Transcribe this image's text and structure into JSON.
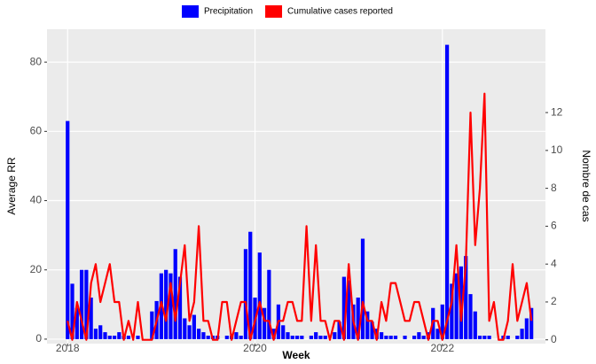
{
  "chart_data": {
    "type": "bar_line",
    "x_label": "Week",
    "y_label": "Average RR",
    "y2_label": "Nombre de cas",
    "x": [
      2018,
      2018.05,
      2018.1,
      2018.15,
      2018.2,
      2018.25,
      2018.3,
      2018.35,
      2018.4,
      2018.45,
      2018.5,
      2018.55,
      2018.6,
      2018.65,
      2018.7,
      2018.75,
      2018.8,
      2018.85,
      2018.9,
      2018.95,
      2019,
      2019.05,
      2019.1,
      2019.15,
      2019.2,
      2019.25,
      2019.3,
      2019.35,
      2019.4,
      2019.45,
      2019.5,
      2019.55,
      2019.6,
      2019.65,
      2019.7,
      2019.75,
      2019.8,
      2019.85,
      2019.9,
      2019.95,
      2020,
      2020.05,
      2020.1,
      2020.15,
      2020.2,
      2020.25,
      2020.3,
      2020.35,
      2020.4,
      2020.45,
      2020.5,
      2020.55,
      2020.6,
      2020.65,
      2020.7,
      2020.75,
      2020.8,
      2020.85,
      2020.9,
      2020.95,
      2021,
      2021.05,
      2021.1,
      2021.15,
      2021.2,
      2021.25,
      2021.3,
      2021.35,
      2021.4,
      2021.45,
      2021.5,
      2021.55,
      2021.6,
      2021.65,
      2021.7,
      2021.75,
      2021.8,
      2021.85,
      2021.9,
      2021.95,
      2022,
      2022.05,
      2022.1,
      2022.15,
      2022.2,
      2022.25,
      2022.3,
      2022.35,
      2022.4,
      2022.45,
      2022.5,
      2022.55,
      2022.6,
      2022.65,
      2022.7,
      2022.75,
      2022.8,
      2022.85,
      2022.9,
      2022.95
    ],
    "series": [
      {
        "name": "Precipitation",
        "color": "#0000ff",
        "axis": "y",
        "values": [
          63,
          16,
          9,
          20,
          20,
          12,
          3,
          4,
          2,
          1,
          1,
          2,
          1,
          1,
          0,
          1,
          0,
          0,
          8,
          11,
          19,
          20,
          19,
          26,
          18,
          6,
          4,
          7,
          3,
          2,
          1,
          1,
          1,
          0,
          1,
          1,
          2,
          1,
          26,
          31,
          12,
          25,
          9,
          20,
          3,
          10,
          4,
          2,
          1,
          1,
          1,
          0,
          1,
          2,
          1,
          1,
          0,
          2,
          5,
          18,
          17,
          10,
          12,
          29,
          8,
          5,
          3,
          2,
          1,
          1,
          1,
          0,
          1,
          0,
          1,
          2,
          1,
          2,
          9,
          3,
          10,
          85,
          16,
          19,
          21,
          24,
          13,
          8,
          1,
          1,
          1,
          0,
          0,
          1,
          1,
          0,
          1,
          3,
          6,
          9
        ]
      },
      {
        "name": "Cumulative cases reported",
        "color": "#ff0000",
        "axis": "y2",
        "values": [
          1,
          0,
          2,
          1,
          0,
          3,
          4,
          2,
          3,
          4,
          2,
          2,
          0,
          1,
          0,
          2,
          0,
          0,
          0,
          1,
          2,
          1,
          3,
          1,
          3,
          5,
          1,
          2,
          6,
          1,
          1,
          0,
          0,
          2,
          2,
          0,
          1,
          2,
          2,
          0,
          1,
          2,
          1,
          1,
          0,
          1,
          1,
          2,
          2,
          1,
          1,
          6,
          1,
          5,
          1,
          1,
          0,
          1,
          1,
          0,
          4,
          1,
          0,
          2,
          1,
          1,
          0,
          2,
          1,
          3,
          3,
          2,
          1,
          1,
          2,
          2,
          1,
          0,
          1,
          1,
          0,
          1,
          2,
          5,
          1,
          4,
          12,
          5,
          8,
          13,
          1,
          2,
          0,
          0,
          1,
          4,
          1,
          2,
          3,
          1
        ]
      }
    ],
    "xlim": [
      2017.78,
      2023.1
    ],
    "xticks": [
      2018,
      2020,
      2022
    ],
    "ylim": [
      -1.3,
      89.5
    ],
    "yticks": [
      0,
      20,
      40,
      60,
      80
    ],
    "y2lim": [
      -0.2,
      16.4
    ],
    "y2ticks": [
      0,
      2,
      4,
      6,
      8,
      10,
      12
    ],
    "grid": true,
    "legend": "top"
  }
}
